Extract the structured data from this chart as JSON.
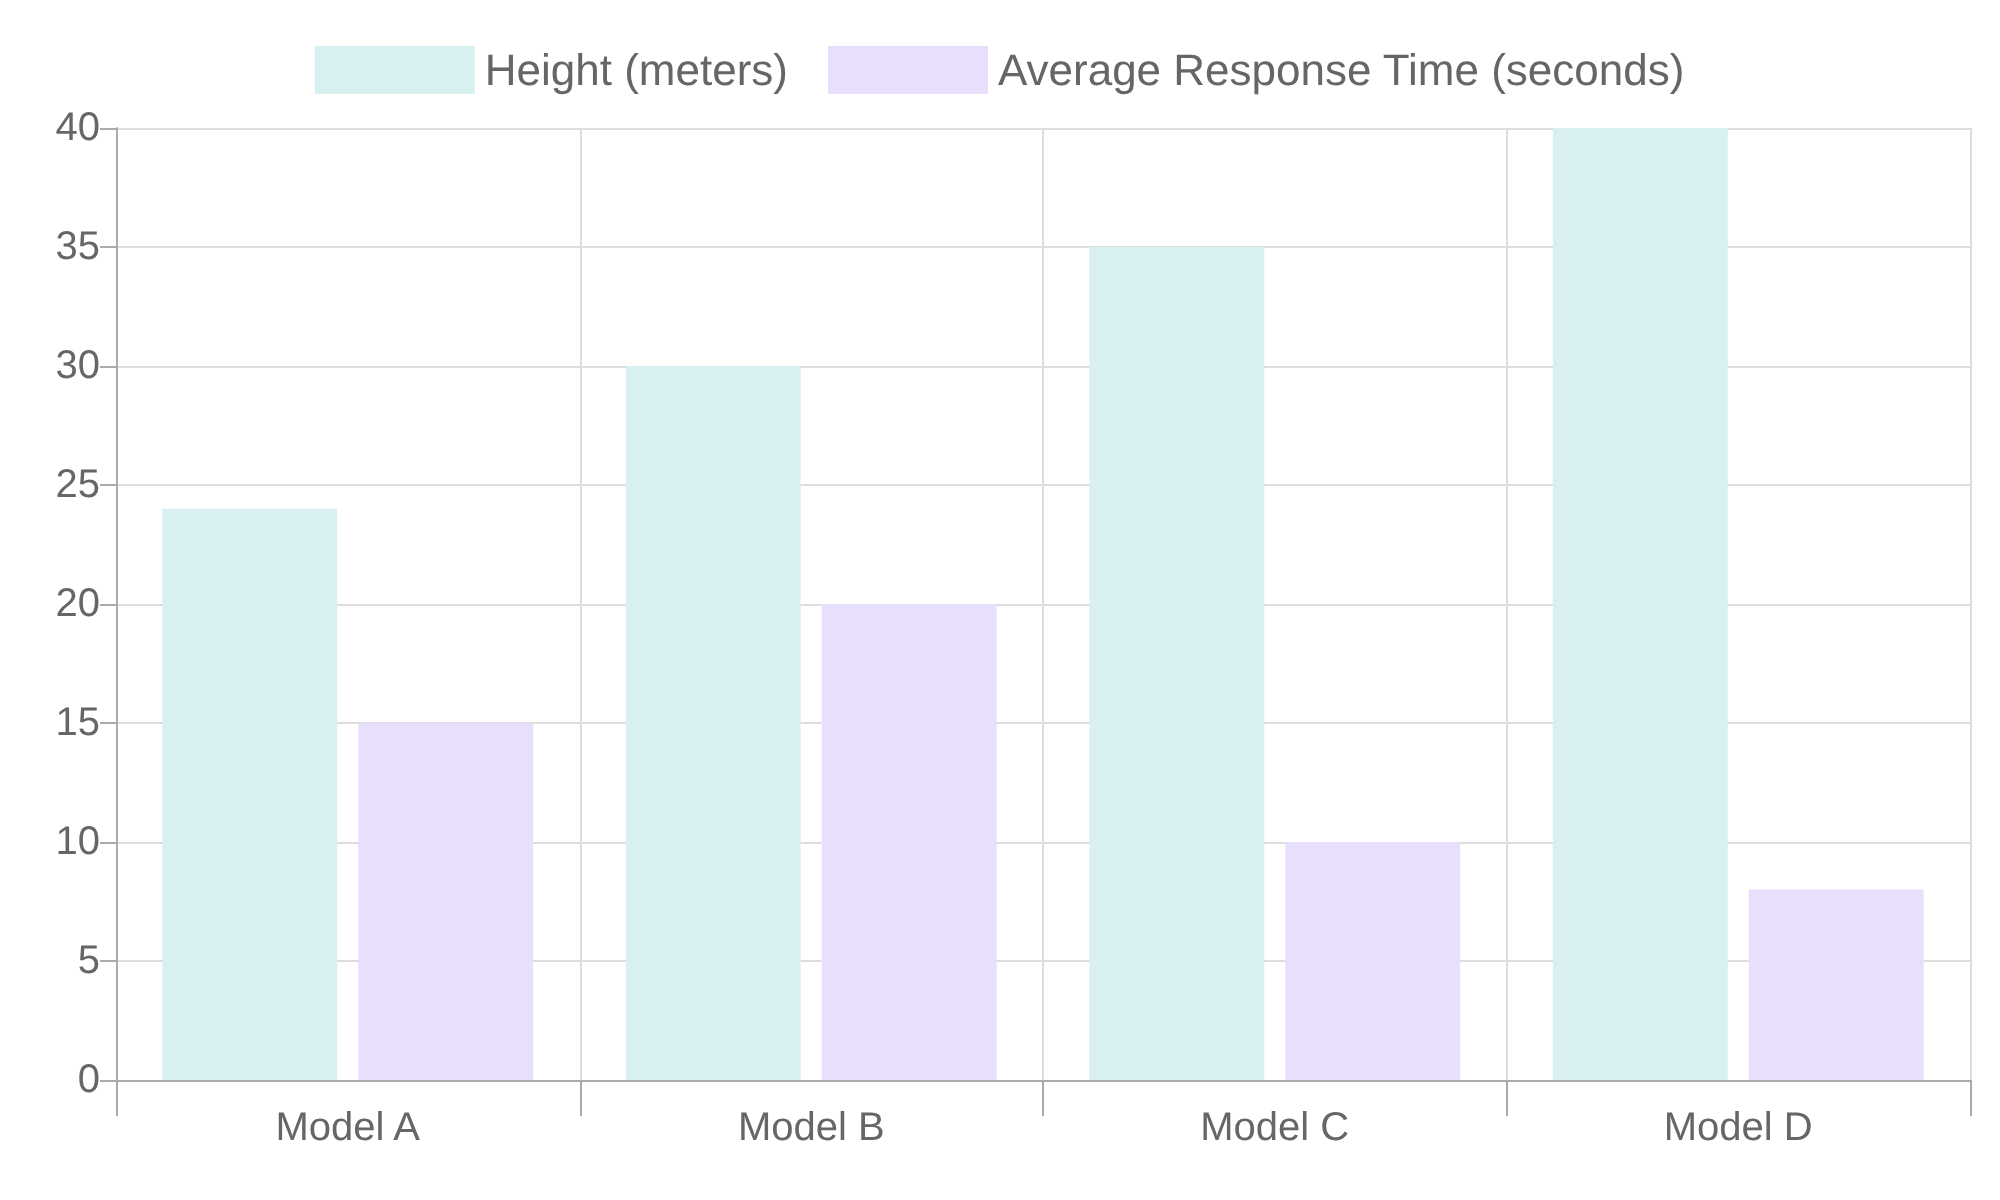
{
  "chart_data": {
    "type": "bar",
    "categories": [
      "Model A",
      "Model B",
      "Model C",
      "Model D"
    ],
    "series": [
      {
        "name": "Height (meters)",
        "color": "#d8f0ef",
        "values": [
          24,
          30,
          35,
          40
        ]
      },
      {
        "name": "Average Response Time (seconds)",
        "color": "#e7dffc",
        "values": [
          15,
          20,
          10,
          8
        ]
      }
    ],
    "ylim": [
      0,
      40
    ],
    "yticks": [
      0,
      5,
      10,
      15,
      20,
      25,
      30,
      35,
      40
    ],
    "grid": true,
    "legend": "top"
  }
}
